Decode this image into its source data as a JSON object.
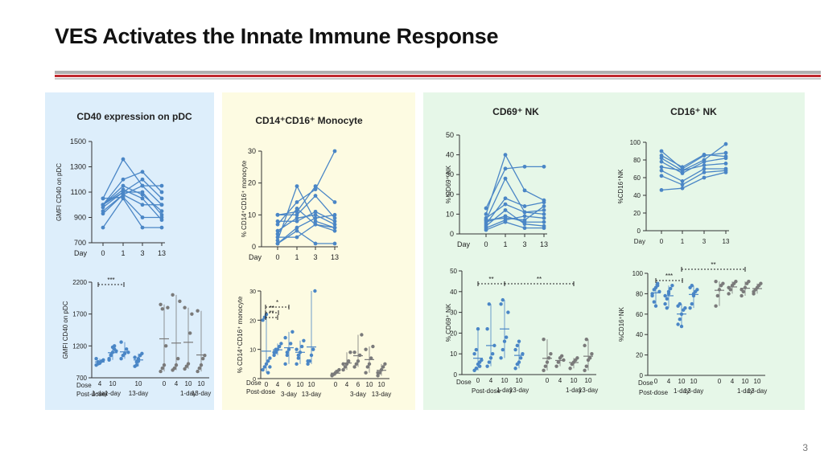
{
  "slide": {
    "title": "VES Activates the Innate Immune Response",
    "page_number": "3"
  },
  "colors": {
    "blue": "#4a86c6",
    "grey": "#7a7a7a",
    "title_rule": "#c0272d"
  },
  "chart_data": [
    {
      "id": "pdc_line",
      "type": "line",
      "title": "CD40 expression on pDC",
      "ylabel": "GMFI CD40 on pDC",
      "xlabel": "Day",
      "categories": [
        "0",
        "1",
        "3",
        "13"
      ],
      "ylim": [
        700,
        1500
      ],
      "yticks": [
        "700",
        "900",
        "1100",
        "1300",
        "1500"
      ],
      "series": [
        {
          "values": [
            1050,
            1360,
            1150,
            1150
          ]
        },
        {
          "values": [
            1000,
            1200,
            1260,
            1100
          ]
        },
        {
          "values": [
            980,
            1100,
            1200,
            1050
          ]
        },
        {
          "values": [
            950,
            1080,
            1150,
            1000
          ]
        },
        {
          "values": [
            1000,
            1150,
            1080,
            950
          ]
        },
        {
          "values": [
            1050,
            1060,
            900,
            900
          ]
        },
        {
          "values": [
            1000,
            1100,
            1100,
            920
          ]
        },
        {
          "values": [
            820,
            1050,
            820,
            820
          ]
        },
        {
          "values": [
            930,
            1080,
            1000,
            1000
          ]
        },
        {
          "values": [
            1000,
            1120,
            1050,
            880
          ]
        }
      ]
    },
    {
      "id": "mono_line",
      "type": "line",
      "title": "CD14⁺CD16⁺ Monocyte",
      "ylabel": "% CD14⁺CD16⁺ monocyte",
      "xlabel": "Day",
      "categories": [
        "0",
        "1",
        "3",
        "13"
      ],
      "ylim": [
        0,
        30
      ],
      "yticks": [
        "0",
        "10",
        "20",
        "30"
      ],
      "series": [
        {
          "values": [
            10,
            11,
            19,
            14
          ]
        },
        {
          "values": [
            7,
            14,
            18,
            30
          ]
        },
        {
          "values": [
            10,
            10,
            16,
            9
          ]
        },
        {
          "values": [
            2,
            19,
            8,
            6
          ]
        },
        {
          "values": [
            5,
            9,
            10,
            7
          ]
        },
        {
          "values": [
            1,
            6,
            9,
            10
          ]
        },
        {
          "values": [
            3,
            3,
            7,
            5
          ]
        },
        {
          "values": [
            1,
            5,
            1,
            1
          ]
        },
        {
          "values": [
            8,
            8,
            11,
            8
          ]
        },
        {
          "values": [
            4,
            12,
            7,
            6
          ]
        }
      ]
    },
    {
      "id": "cd69_line",
      "type": "line",
      "title": "CD69⁺ NK",
      "ylabel": "% CD69⁺ NK",
      "xlabel": "Day",
      "categories": [
        "0",
        "1",
        "3",
        "13"
      ],
      "ylim": [
        0,
        50
      ],
      "yticks": [
        "0",
        "10",
        "20",
        "30",
        "40",
        "50"
      ],
      "series": [
        {
          "values": [
            10,
            40,
            22,
            17
          ]
        },
        {
          "values": [
            13,
            33,
            34,
            34
          ]
        },
        {
          "values": [
            7,
            28,
            11,
            12
          ]
        },
        {
          "values": [
            5,
            18,
            14,
            16
          ]
        },
        {
          "values": [
            8,
            15,
            11,
            10
          ]
        },
        {
          "values": [
            3,
            7,
            9,
            8
          ]
        },
        {
          "values": [
            6,
            9,
            6,
            6
          ]
        },
        {
          "values": [
            2,
            6,
            3,
            3
          ]
        },
        {
          "values": [
            7,
            8,
            7,
            14
          ]
        },
        {
          "values": [
            4,
            12,
            5,
            4
          ]
        }
      ]
    },
    {
      "id": "cd16_line",
      "type": "line",
      "title": "CD16⁺ NK",
      "ylabel": "%CD16⁺NK",
      "xlabel": "Day",
      "categories": [
        "0",
        "1",
        "3",
        "13"
      ],
      "ylim": [
        0,
        100
      ],
      "yticks": [
        "0",
        "20",
        "40",
        "60",
        "80",
        "100"
      ],
      "series": [
        {
          "values": [
            90,
            70,
            85,
            88
          ]
        },
        {
          "values": [
            85,
            72,
            86,
            84
          ]
        },
        {
          "values": [
            82,
            68,
            80,
            98
          ]
        },
        {
          "values": [
            78,
            65,
            78,
            82
          ]
        },
        {
          "values": [
            72,
            68,
            74,
            76
          ]
        },
        {
          "values": [
            68,
            56,
            70,
            70
          ]
        },
        {
          "values": [
            62,
            52,
            66,
            68
          ]
        },
        {
          "values": [
            46,
            48,
            60,
            66
          ]
        }
      ]
    },
    {
      "id": "pdc_dot",
      "type": "scatter",
      "ylabel": "GMFI CD40 on pDC",
      "ylim": [
        700,
        2200
      ],
      "yticks": [
        "700",
        "1200",
        "1700",
        "2200"
      ],
      "dose_label": "Dose",
      "postdose_label": "Post-dose",
      "sig": [
        {
          "label": "***"
        }
      ],
      "groups": [
        {
          "dose": "4",
          "day": "1-day",
          "color": "blue",
          "points": [
            900,
            920,
            940,
            960,
            980,
            1000,
            950,
            930
          ]
        },
        {
          "dose": "10",
          "day": "1-day",
          "color": "blue",
          "points": [
            1000,
            1050,
            1100,
            1150,
            1120,
            980,
            1060,
            1180,
            1200
          ]
        },
        {
          "dose": "",
          "day": "",
          "color": "blue",
          "points": [
            1000,
            1050,
            1080,
            1150,
            1100,
            1260
          ]
        },
        {
          "dose": "10",
          "day": "13-day",
          "color": "blue",
          "points": [
            880,
            950,
            1000,
            1050,
            1080,
            1020,
            900,
            960
          ]
        },
        {
          "dose": "0",
          "day": "",
          "color": "grey",
          "points": [
            800,
            850,
            900,
            1200,
            1800,
            1850,
            1780
          ]
        },
        {
          "dose": "4",
          "day": "",
          "color": "grey",
          "points": [
            820,
            850,
            900,
            1000,
            1900,
            2000
          ]
        },
        {
          "dose": "10",
          "day": "1-day",
          "color": "grey",
          "points": [
            840,
            880,
            920,
            1400,
            1700,
            1800
          ]
        },
        {
          "dose": "10",
          "day": "13-day",
          "color": "grey",
          "points": [
            800,
            850,
            900,
            1000,
            1050,
            1750
          ]
        }
      ]
    },
    {
      "id": "mono_dot",
      "type": "scatter",
      "ylabel": "% CD14⁺CD16⁺ monocyte",
      "ylim": [
        0,
        30
      ],
      "yticks": [
        "0",
        "10",
        "20",
        "30"
      ],
      "dose_label": "Dose",
      "postdose_label": "Post-dose",
      "sig": [
        {
          "label": "*"
        },
        {
          "label": "**"
        },
        {
          "label": "**"
        }
      ],
      "groups": [
        {
          "dose": "0",
          "day": "",
          "color": "blue",
          "points": [
            3,
            4,
            5,
            6,
            7,
            20,
            21,
            22,
            2,
            4
          ]
        },
        {
          "dose": "4",
          "day": "",
          "color": "blue",
          "points": [
            8,
            9,
            10,
            11,
            12,
            9,
            10
          ]
        },
        {
          "dose": "6",
          "day": "3-day",
          "color": "blue",
          "points": [
            5,
            8,
            10,
            12,
            16,
            14,
            9
          ]
        },
        {
          "dose": "10",
          "day": "",
          "color": "blue",
          "points": [
            5,
            7,
            9,
            11,
            13,
            10,
            8
          ]
        },
        {
          "dose": "10",
          "day": "13-day",
          "color": "blue",
          "points": [
            5,
            6,
            8,
            10,
            30,
            6
          ]
        },
        {
          "dose": "0",
          "day": "",
          "color": "grey",
          "points": [
            1,
            1.5,
            2,
            2.5,
            3,
            1.2
          ]
        },
        {
          "dose": "4",
          "day": "",
          "color": "grey",
          "points": [
            3,
            4,
            5,
            6,
            9,
            5
          ]
        },
        {
          "dose": "6",
          "day": "3-day",
          "color": "grey",
          "points": [
            4,
            5,
            6,
            8,
            15,
            9
          ]
        },
        {
          "dose": "10",
          "day": "",
          "color": "grey",
          "points": [
            2,
            4,
            5,
            7,
            11,
            10
          ]
        },
        {
          "dose": "10",
          "day": "13-day",
          "color": "grey",
          "points": [
            1,
            2,
            3,
            4,
            5,
            2
          ]
        }
      ]
    },
    {
      "id": "cd69_dot",
      "type": "scatter",
      "ylabel": "% CD69⁺ NK",
      "ylim": [
        0,
        50
      ],
      "yticks": [
        "0",
        "10",
        "20",
        "30",
        "40",
        "50"
      ],
      "dose_label": "Dose",
      "postdose_label": "Post-dose",
      "sig": [
        {
          "label": "**"
        },
        {
          "label": "**"
        }
      ],
      "groups": [
        {
          "dose": "0",
          "day": "",
          "color": "blue",
          "points": [
            2,
            3,
            5,
            6,
            7,
            10,
            12,
            22,
            4
          ]
        },
        {
          "dose": "4",
          "day": "",
          "color": "blue",
          "points": [
            4,
            6,
            8,
            10,
            14,
            22,
            34
          ]
        },
        {
          "dose": "10",
          "day": "1-day",
          "color": "blue",
          "points": [
            8,
            12,
            16,
            18,
            30,
            34,
            36
          ]
        },
        {
          "dose": "10",
          "day": "13-day",
          "color": "blue",
          "points": [
            3,
            5,
            6,
            8,
            10,
            12,
            14,
            16
          ]
        },
        {
          "dose": "0",
          "day": "",
          "color": "grey",
          "points": [
            2,
            4,
            6,
            8,
            10,
            17
          ]
        },
        {
          "dose": "4",
          "day": "",
          "color": "grey",
          "points": [
            4,
            6,
            8,
            9,
            7
          ]
        },
        {
          "dose": "10",
          "day": "1-day",
          "color": "grey",
          "points": [
            3,
            5,
            6,
            7,
            8
          ]
        },
        {
          "dose": "10",
          "day": "13-day",
          "color": "grey",
          "points": [
            2,
            4,
            7,
            8,
            10,
            14,
            17
          ]
        }
      ]
    },
    {
      "id": "cd16_dot",
      "type": "scatter",
      "ylabel": "%CD16⁺NK",
      "ylim": [
        0,
        100
      ],
      "yticks": [
        "0",
        "20",
        "40",
        "60",
        "80",
        "100"
      ],
      "dose_label": "Dose",
      "postdose_label": "Post-dose",
      "sig": [
        {
          "label": "***"
        },
        {
          "label": "**"
        }
      ],
      "groups": [
        {
          "dose": "0",
          "day": "",
          "color": "blue",
          "points": [
            80,
            84,
            86,
            88,
            82,
            78,
            72,
            68,
            90
          ]
        },
        {
          "dose": "4",
          "day": "",
          "color": "blue",
          "points": [
            70,
            75,
            80,
            85,
            88,
            78,
            66,
            82
          ]
        },
        {
          "dose": "10",
          "day": "1-day",
          "color": "blue",
          "points": [
            50,
            55,
            60,
            64,
            66,
            68,
            70,
            48
          ]
        },
        {
          "dose": "10",
          "day": "13-day",
          "color": "blue",
          "points": [
            66,
            70,
            78,
            82,
            84,
            86,
            88,
            80
          ]
        },
        {
          "dose": "0",
          "day": "",
          "color": "grey",
          "points": [
            68,
            78,
            84,
            88,
            90,
            92
          ]
        },
        {
          "dose": "4",
          "day": "",
          "color": "grey",
          "points": [
            80,
            84,
            88,
            90,
            92,
            86
          ]
        },
        {
          "dose": "10",
          "day": "1-day",
          "color": "grey",
          "points": [
            78,
            82,
            86,
            90,
            92,
            84
          ]
        },
        {
          "dose": "10",
          "day": "13-day",
          "color": "grey",
          "points": [
            80,
            84,
            86,
            88,
            90,
            82
          ]
        }
      ]
    }
  ]
}
